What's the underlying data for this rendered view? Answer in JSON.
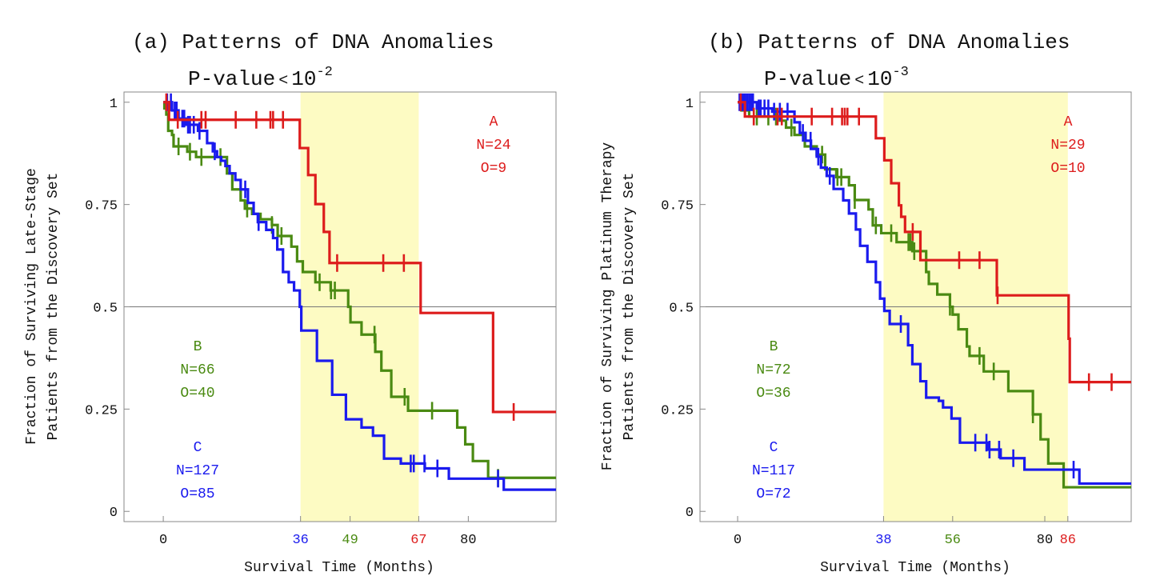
{
  "chart_data": [
    {
      "type": "line",
      "subtype": "kaplan-meier step",
      "title": "(a) Patterns of DNA Anomalies",
      "subtitle_prefix": "P-value",
      "subtitle_op": "<",
      "subtitle_base": "10",
      "subtitle_exp": "-2",
      "xlabel": "Survival Time (Months)",
      "ylabel_line1": "Fraction of Surviving Late-Stage",
      "ylabel_line2": "Patients from the Discovery Set",
      "xlim": [
        -10.3,
        103
      ],
      "ylim": [
        -0.025,
        1.025
      ],
      "yticks": [
        "0",
        "0.25",
        "0.5",
        "0.75",
        "1"
      ],
      "ytick_values": [
        0,
        0.25,
        0.5,
        0.75,
        1
      ],
      "xticks": [
        {
          "value": 0,
          "label": "0",
          "color": "#111111"
        },
        {
          "value": 36,
          "label": "36",
          "color": "#1a1aee"
        },
        {
          "value": 49,
          "label": "49",
          "color": "#4a8a12"
        },
        {
          "value": 67,
          "label": "67",
          "color": "#dd1c1c"
        },
        {
          "value": 80,
          "label": "80",
          "color": "#111111"
        }
      ],
      "reference_line": 0.5,
      "highlight_band": [
        36,
        67
      ],
      "highlight_color": "#fdfbc3",
      "series": [
        {
          "name": "A",
          "n_label": "N=24",
          "o_label": "O=9",
          "color": "#dd1c1c",
          "steps": [
            [
              0,
              1
            ],
            [
              1.5,
              0.957
            ],
            [
              35.8,
              0.888
            ],
            [
              38,
              0.822
            ],
            [
              39.9,
              0.751
            ],
            [
              42.1,
              0.683
            ],
            [
              43.6,
              0.607
            ],
            [
              67.5,
              0.485
            ],
            [
              86.5,
              0.243
            ]
          ],
          "censored": [
            0.8,
            3.8,
            10,
            11.1,
            19,
            24.4,
            28.1,
            28.8,
            31.4,
            45.6,
            57.7,
            63.1,
            91.9
          ]
        },
        {
          "name": "B",
          "n_label": "N=66",
          "o_label": "O=40",
          "color": "#4a8a12",
          "steps": [
            [
              0,
              1
            ],
            [
              0.3,
              0.985
            ],
            [
              0.8,
              0.97
            ],
            [
              1.3,
              0.93
            ],
            [
              2.3,
              0.92
            ],
            [
              2.7,
              0.892
            ],
            [
              6.3,
              0.879
            ],
            [
              8.6,
              0.866
            ],
            [
              16.7,
              0.826
            ],
            [
              18.1,
              0.787
            ],
            [
              20.3,
              0.76
            ],
            [
              21.4,
              0.74
            ],
            [
              23.3,
              0.727
            ],
            [
              25.5,
              0.714
            ],
            [
              28.5,
              0.7
            ],
            [
              30,
              0.673
            ],
            [
              33.6,
              0.647
            ],
            [
              35.1,
              0.611
            ],
            [
              36.6,
              0.585
            ],
            [
              39.9,
              0.56
            ],
            [
              43.9,
              0.54
            ],
            [
              48.5,
              0.5
            ],
            [
              49.1,
              0.462
            ],
            [
              52,
              0.432
            ],
            [
              55.6,
              0.39
            ],
            [
              57.2,
              0.344
            ],
            [
              59.8,
              0.28
            ],
            [
              64.2,
              0.246
            ],
            [
              77.1,
              0.205
            ],
            [
              79.2,
              0.164
            ],
            [
              81.2,
              0.123
            ],
            [
              85.2,
              0.082
            ]
          ],
          "censored": [
            4,
            7,
            10,
            15,
            22,
            28.5,
            31,
            41,
            44,
            45,
            55.4,
            63.3,
            70.5,
            87.8
          ]
        },
        {
          "name": "C",
          "n_label": "N=127",
          "o_label": "O=85",
          "color": "#1a1aee",
          "steps": [
            [
              0,
              1
            ],
            [
              2.3,
              0.98
            ],
            [
              4,
              0.96
            ],
            [
              6,
              0.945
            ],
            [
              9.1,
              0.93
            ],
            [
              11.5,
              0.9
            ],
            [
              13,
              0.88
            ],
            [
              14.1,
              0.866
            ],
            [
              15.2,
              0.857
            ],
            [
              16.3,
              0.844
            ],
            [
              17.4,
              0.826
            ],
            [
              18.9,
              0.81
            ],
            [
              20.3,
              0.787
            ],
            [
              22.2,
              0.754
            ],
            [
              23.7,
              0.727
            ],
            [
              24.8,
              0.707
            ],
            [
              27,
              0.688
            ],
            [
              28.8,
              0.668
            ],
            [
              29.9,
              0.64
            ],
            [
              31.4,
              0.585
            ],
            [
              32.9,
              0.56
            ],
            [
              34.3,
              0.54
            ],
            [
              35.8,
              0.5
            ],
            [
              36.2,
              0.442
            ],
            [
              40.3,
              0.368
            ],
            [
              44.3,
              0.285
            ],
            [
              47.9,
              0.225
            ],
            [
              52,
              0.205
            ],
            [
              55,
              0.185
            ],
            [
              57.9,
              0.129
            ],
            [
              62.3,
              0.117
            ],
            [
              68.6,
              0.105
            ],
            [
              74.9,
              0.08
            ],
            [
              89.3,
              0.053
            ]
          ],
          "censored": [
            1,
            2,
            3,
            3.5,
            5,
            5.5,
            6.5,
            7,
            8,
            9.5,
            13.5,
            21.5,
            25,
            64.9,
            65.7,
            68.5,
            71.9,
            87.8
          ]
        }
      ]
    },
    {
      "type": "line",
      "subtype": "kaplan-meier step",
      "title": "(b) Patterns of DNA Anomalies",
      "subtitle_prefix": "P-value",
      "subtitle_op": "<",
      "subtitle_base": "10",
      "subtitle_exp": "-3",
      "xlabel": "Survival Time (Months)",
      "ylabel_line1": "Fraction of Surviving Platinum Therapy",
      "ylabel_line2": "Patients from the Discovery Set",
      "xlim": [
        -9.8,
        102.5
      ],
      "ylim": [
        -0.025,
        1.025
      ],
      "yticks": [
        "0",
        "0.25",
        "0.5",
        "0.75",
        "1"
      ],
      "ytick_values": [
        0,
        0.25,
        0.5,
        0.75,
        1
      ],
      "xticks": [
        {
          "value": 0,
          "label": "0",
          "color": "#111111"
        },
        {
          "value": 38,
          "label": "38",
          "color": "#1a1aee"
        },
        {
          "value": 56,
          "label": "56",
          "color": "#4a8a12"
        },
        {
          "value": 80,
          "label": "80",
          "color": "#111111"
        },
        {
          "value": 86,
          "label": "86",
          "color": "#dd1c1c"
        }
      ],
      "reference_line": 0.5,
      "highlight_band": [
        38,
        86
      ],
      "highlight_color": "#fdfbc3",
      "series": [
        {
          "name": "A",
          "n_label": "N=29",
          "o_label": "O=10",
          "color": "#dd1c1c",
          "steps": [
            [
              0,
              1
            ],
            [
              1.9,
              0.965
            ],
            [
              36,
              0.912
            ],
            [
              38.2,
              0.858
            ],
            [
              40,
              0.802
            ],
            [
              42,
              0.748
            ],
            [
              42.6,
              0.72
            ],
            [
              43.6,
              0.683
            ],
            [
              47.6,
              0.614
            ],
            [
              67.5,
              0.528
            ],
            [
              86.2,
              0.422
            ],
            [
              86.5,
              0.316
            ]
          ],
          "censored": [
            0.8,
            4.2,
            10.4,
            11.5,
            19.3,
            24.6,
            27.2,
            27.9,
            28.6,
            31.6,
            45.6,
            57.7,
            63,
            67.7,
            91.5,
            97.4
          ]
        },
        {
          "name": "B",
          "n_label": "N=72",
          "o_label": "O=36",
          "color": "#4a8a12",
          "steps": [
            [
              0,
              1
            ],
            [
              1,
              0.98
            ],
            [
              3,
              0.965
            ],
            [
              11,
              0.955
            ],
            [
              12.6,
              0.938
            ],
            [
              14.8,
              0.92
            ],
            [
              17.5,
              0.892
            ],
            [
              20.6,
              0.872
            ],
            [
              22.8,
              0.836
            ],
            [
              25.7,
              0.817
            ],
            [
              29,
              0.797
            ],
            [
              30.5,
              0.761
            ],
            [
              34.1,
              0.738
            ],
            [
              35.2,
              0.699
            ],
            [
              37.4,
              0.68
            ],
            [
              41.4,
              0.658
            ],
            [
              45.5,
              0.636
            ],
            [
              49.1,
              0.585
            ],
            [
              49.8,
              0.556
            ],
            [
              52,
              0.53
            ],
            [
              55.3,
              0.5
            ],
            [
              56,
              0.481
            ],
            [
              57.5,
              0.445
            ],
            [
              59.7,
              0.403
            ],
            [
              60.4,
              0.38
            ],
            [
              64.1,
              0.342
            ],
            [
              70.5,
              0.294
            ],
            [
              76.9,
              0.237
            ],
            [
              78.9,
              0.176
            ],
            [
              80.9,
              0.117
            ],
            [
              84.9,
              0.059
            ]
          ],
          "censored": [
            5,
            8,
            10,
            14,
            22,
            26,
            27,
            30.5,
            36,
            40,
            44.5,
            45,
            46,
            55.3,
            63,
            66.7,
            76.9
          ]
        },
        {
          "name": "C",
          "n_label": "N=117",
          "o_label": "O=72",
          "color": "#1a1aee",
          "steps": [
            [
              0,
              1
            ],
            [
              5,
              0.985
            ],
            [
              9,
              0.977
            ],
            [
              14.8,
              0.951
            ],
            [
              16.2,
              0.925
            ],
            [
              17.7,
              0.906
            ],
            [
              19.1,
              0.886
            ],
            [
              20.6,
              0.867
            ],
            [
              21.7,
              0.84
            ],
            [
              23.2,
              0.82
            ],
            [
              25,
              0.788
            ],
            [
              27.5,
              0.76
            ],
            [
              29,
              0.728
            ],
            [
              30.8,
              0.689
            ],
            [
              31.9,
              0.649
            ],
            [
              33.8,
              0.61
            ],
            [
              36,
              0.56
            ],
            [
              37.1,
              0.52
            ],
            [
              38.2,
              0.49
            ],
            [
              39.6,
              0.458
            ],
            [
              44.4,
              0.406
            ],
            [
              45.5,
              0.36
            ],
            [
              47.6,
              0.318
            ],
            [
              49.1,
              0.278
            ],
            [
              52.4,
              0.27
            ],
            [
              53.5,
              0.254
            ],
            [
              55.7,
              0.227
            ],
            [
              57.9,
              0.168
            ],
            [
              65.2,
              0.151
            ],
            [
              68.5,
              0.13
            ],
            [
              74.7,
              0.102
            ],
            [
              89,
              0.068
            ]
          ],
          "censored": [
            0.5,
            1,
            1.5,
            2,
            2.5,
            3,
            3.5,
            4,
            5.5,
            6,
            7,
            8,
            9.5,
            11,
            13,
            17,
            19,
            21,
            24,
            42.5,
            61.9,
            64.8,
            65.6,
            68.1,
            71.8,
            87.5
          ]
        }
      ]
    }
  ]
}
